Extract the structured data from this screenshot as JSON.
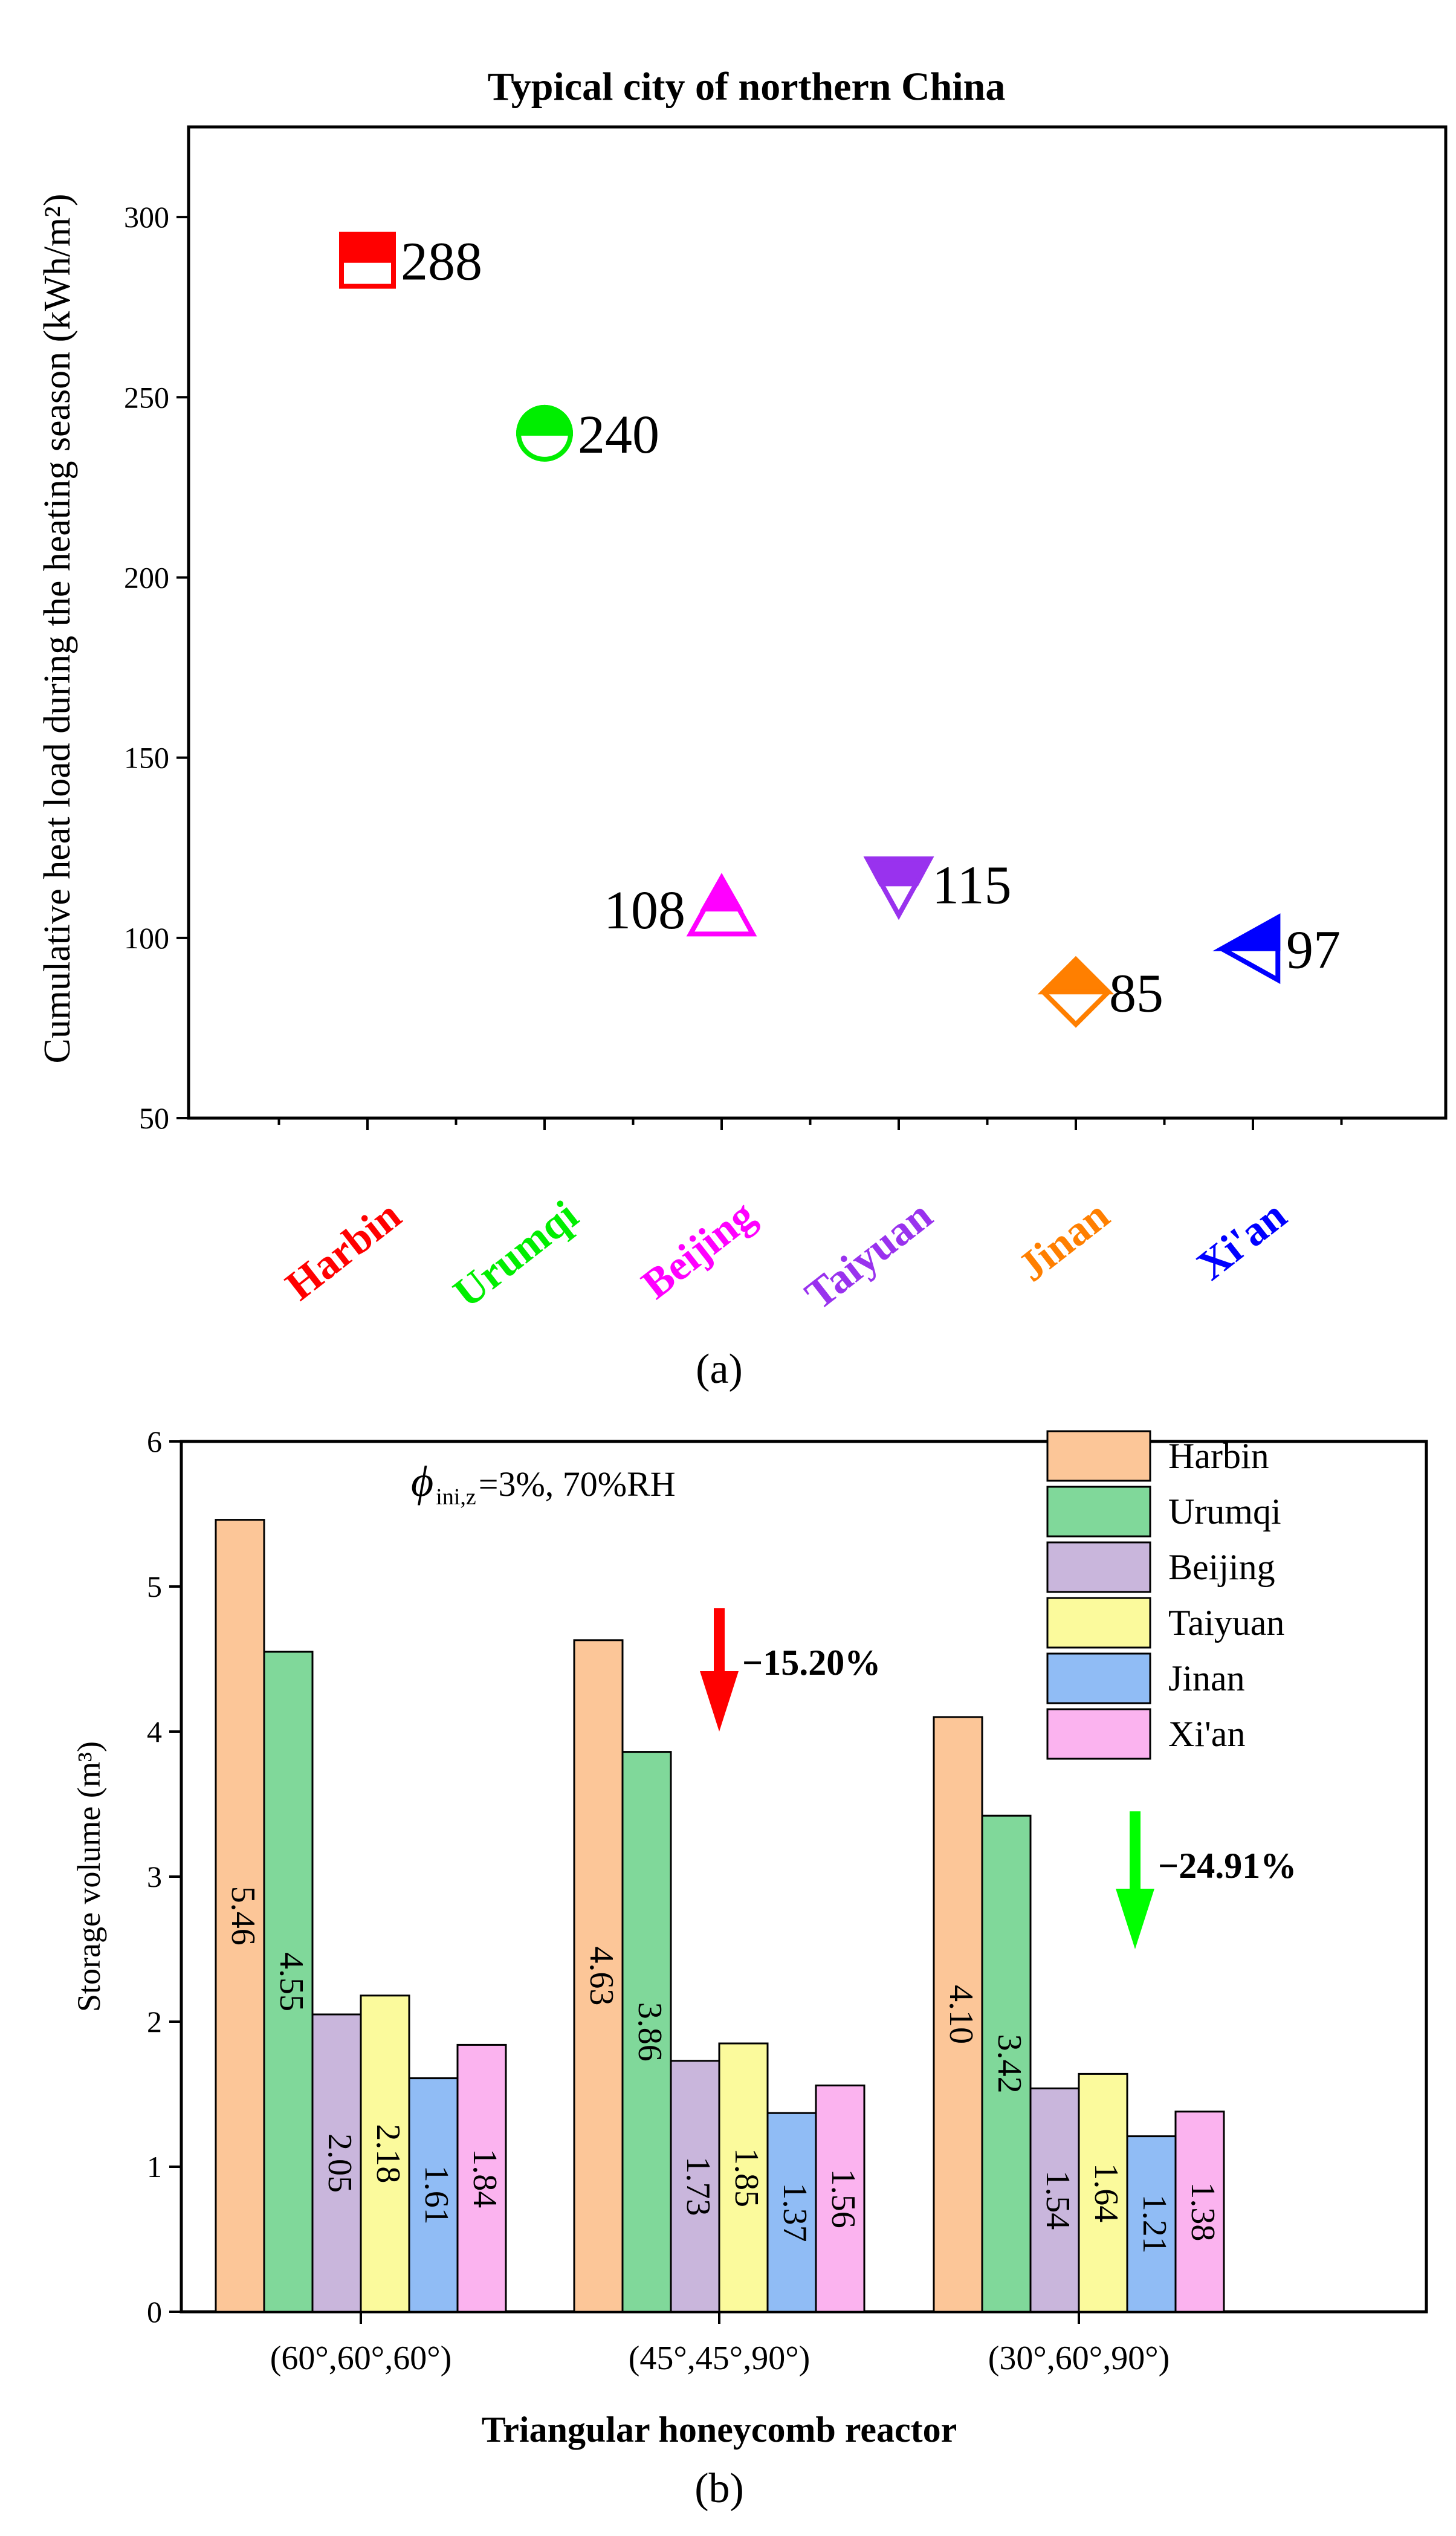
{
  "chart_data": [
    {
      "type": "scatter",
      "title": "Typical city of northern China",
      "ylabel": "Cumulative heat load during the heating season (kWh/m²)",
      "xlabel": "",
      "ylim": [
        50,
        325
      ],
      "yticks": [
        50,
        100,
        150,
        200,
        250,
        300
      ],
      "categories": [
        "Harbin",
        "Urumqi",
        "Beijing",
        "Taiyuan",
        "Jinan",
        "Xi'an"
      ],
      "values": [
        288,
        240,
        108,
        115,
        85,
        97
      ],
      "point_labels": [
        "288",
        "240",
        "108",
        "115",
        "85",
        "97"
      ],
      "markers": [
        "half-filled-square",
        "half-filled-circle",
        "half-filled-triangle-up",
        "half-filled-triangle-down",
        "half-filled-diamond",
        "half-filled-triangle-left"
      ],
      "colors": [
        "#ff0000",
        "#00ee00",
        "#ff00ff",
        "#9932ee",
        "#ff7f00",
        "#0000ff"
      ],
      "panel_label": "(a)"
    },
    {
      "type": "bar",
      "xlabel": "Triangular honeycomb reactor",
      "ylabel": "Storage volume (m³)",
      "ylim": [
        0,
        6
      ],
      "yticks": [
        0,
        1,
        2,
        3,
        4,
        5,
        6
      ],
      "categories": [
        "(60°,60°,60°)",
        "(45°,45°,90°)",
        "(30°,60°,90°)"
      ],
      "series": [
        {
          "name": "Harbin",
          "values": [
            5.46,
            4.63,
            4.1
          ],
          "labels": [
            "5.46",
            "4.63",
            "4.10"
          ],
          "color": "#fcc698"
        },
        {
          "name": "Urumqi",
          "values": [
            4.55,
            3.86,
            3.42
          ],
          "labels": [
            "4.55",
            "3.86",
            "3.42"
          ],
          "color": "#80d89a"
        },
        {
          "name": "Beijing",
          "values": [
            2.05,
            1.73,
            1.54
          ],
          "labels": [
            "2.05",
            "1.73",
            "1.54"
          ],
          "color": "#c9b6dc"
        },
        {
          "name": "Taiyuan",
          "values": [
            2.18,
            1.85,
            1.64
          ],
          "labels": [
            "2.18",
            "1.85",
            "1.64"
          ],
          "color": "#fbfa9c"
        },
        {
          "name": "Jinan",
          "values": [
            1.61,
            1.37,
            1.21
          ],
          "labels": [
            "1.61",
            "1.37",
            "1.21"
          ],
          "color": "#90bcf5"
        },
        {
          "name": "Xi'an",
          "values": [
            1.84,
            1.56,
            1.38
          ],
          "labels": [
            "1.84",
            "1.56",
            "1.38"
          ],
          "color": "#fbb3ef"
        }
      ],
      "condition_phi": "ϕ",
      "condition_sub": "ini,z",
      "condition_rest": "=3%, 70%RH",
      "annotations": [
        {
          "text": "−15.20%",
          "color": "#ff0000",
          "group_index": 1,
          "arrow_top_value": 4.85,
          "arrow_bottom_value": 4.0
        },
        {
          "text": "−24.91%",
          "color": "#00ff00",
          "group_index": 2,
          "arrow_top_value": 3.45,
          "arrow_bottom_value": 2.5
        }
      ],
      "legend_position": "top-right",
      "panel_label": "(b)"
    }
  ]
}
